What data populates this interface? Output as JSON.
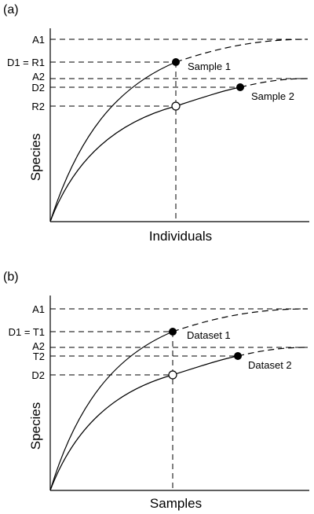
{
  "panels": [
    {
      "panel_label": "(a)",
      "xlabel": "Individuals",
      "ylabel": "Species",
      "y_ticks": [
        "A1",
        "D1 = R1",
        "A2",
        "D2",
        "R2"
      ],
      "curve_labels": [
        "Sample 1",
        "Sample 2"
      ]
    },
    {
      "panel_label": "(b)",
      "xlabel": "Samples",
      "ylabel": "Species",
      "y_ticks": [
        "A1",
        "D1 = T1",
        "A2",
        "T2",
        "D2"
      ],
      "curve_labels": [
        "Dataset 1",
        "Dataset 2"
      ]
    }
  ],
  "colors": {
    "ink": "#000000",
    "background": "#ffffff"
  }
}
